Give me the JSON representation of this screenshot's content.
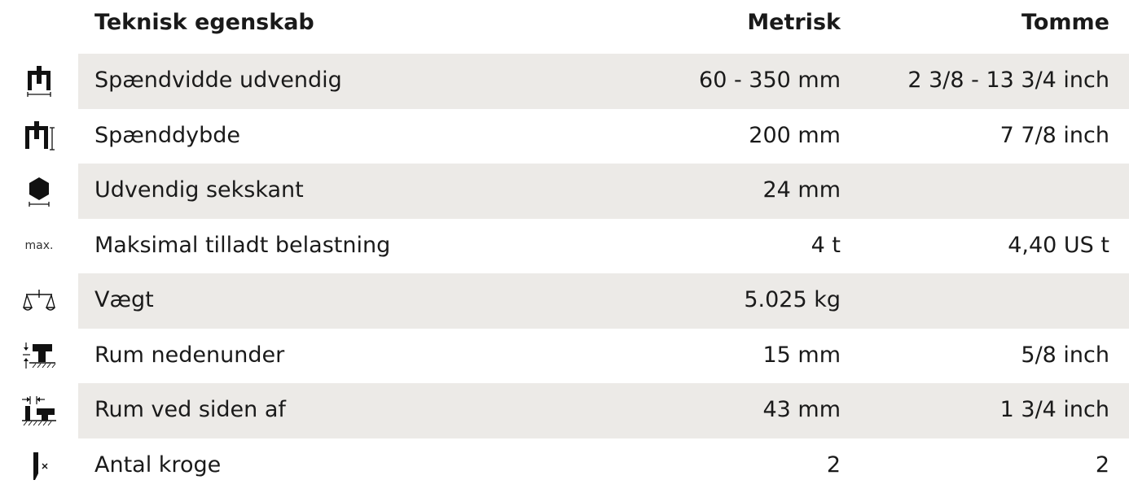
{
  "header": {
    "property": "Teknisk egenskab",
    "metric": "Metrisk",
    "inch": "Tomme"
  },
  "rows": [
    {
      "icon": "puller-span-icon",
      "name": "Spændvidde udvendig",
      "metric": "60 - 350 mm",
      "inch": "2 3/8 - 13 3/4 inch"
    },
    {
      "icon": "puller-depth-icon",
      "name": "Spænddybde",
      "metric": "200 mm",
      "inch": "7 7/8 inch"
    },
    {
      "icon": "hexagon-icon",
      "name": "Udvendig sekskant",
      "metric": "24 mm",
      "inch": ""
    },
    {
      "icon": "max-label-icon",
      "icon_text": "max.",
      "name": "Maksimal tilladt belastning",
      "metric": "4 t",
      "inch": "4,40 US t"
    },
    {
      "icon": "scale-icon",
      "name": "Vægt",
      "metric": "5.025 kg",
      "inch": ""
    },
    {
      "icon": "clearance-below-icon",
      "name": "Rum nedenunder",
      "metric": "15 mm",
      "inch": "5/8 inch"
    },
    {
      "icon": "clearance-side-icon",
      "name": "Rum ved siden af",
      "metric": "43 mm",
      "inch": "1 3/4 inch"
    },
    {
      "icon": "hook-count-icon",
      "name": "Antal kroge",
      "metric": "2",
      "inch": "2"
    }
  ],
  "colors": {
    "row_shade": "#eceae7",
    "text": "#1a1a1a"
  }
}
